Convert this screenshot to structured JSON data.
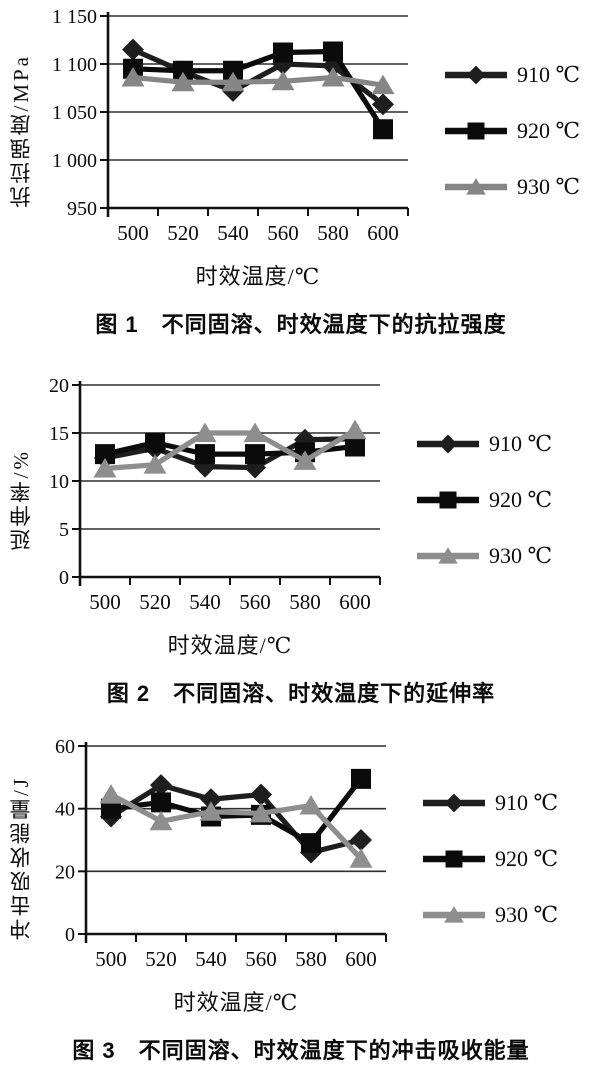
{
  "page": {
    "background": "#ffffff",
    "text_color": "#111111"
  },
  "chart_data": [
    {
      "type": "line",
      "caption": "图 1　不同固溶、时效温度下的抗拉强度",
      "ylabel": "抗拉强度/MPa",
      "xlabel": "时效温度/℃",
      "ylim": [
        950,
        1150
      ],
      "ystep": 50,
      "ytick_labels": [
        "950",
        "1 000",
        "1 050",
        "1 100",
        "1 150"
      ],
      "categories": [
        "500",
        "520",
        "540",
        "560",
        "580",
        "600"
      ],
      "grid": true,
      "legend_position": "right",
      "series": [
        {
          "name": "910 ℃",
          "marker": "diamond",
          "color": "#1e1e1e",
          "values": [
            1115,
            1092,
            1072,
            1100,
            1098,
            1058
          ]
        },
        {
          "name": "920 ℃",
          "marker": "square",
          "color": "#0b0b0b",
          "values": [
            1095,
            1093,
            1093,
            1112,
            1113,
            1032
          ]
        },
        {
          "name": "930 ℃",
          "marker": "triangle",
          "color": "#868686",
          "values": [
            1086,
            1081,
            1081,
            1082,
            1086,
            1078
          ]
        }
      ]
    },
    {
      "type": "line",
      "caption": "图 2　不同固溶、时效温度下的延伸率",
      "ylabel": "延伸率/%",
      "xlabel": "时效温度/℃",
      "ylim": [
        0,
        20
      ],
      "ystep": 5,
      "ytick_labels": [
        "0",
        "5",
        "10",
        "15",
        "20"
      ],
      "categories": [
        "500",
        "520",
        "540",
        "560",
        "580",
        "600"
      ],
      "grid": true,
      "legend_position": "right",
      "series": [
        {
          "name": "910 ℃",
          "marker": "diamond",
          "color": "#1e1e1e",
          "values": [
            12.4,
            13.4,
            11.5,
            11.4,
            14.3,
            14.4
          ]
        },
        {
          "name": "920 ℃",
          "marker": "square",
          "color": "#0b0b0b",
          "values": [
            12.8,
            14.0,
            12.8,
            12.8,
            13.0,
            13.6
          ]
        },
        {
          "name": "930 ℃",
          "marker": "triangle",
          "color": "#8e8e8e",
          "values": [
            11.3,
            11.7,
            15.0,
            15.0,
            12.1,
            15.3
          ]
        }
      ]
    },
    {
      "type": "line",
      "caption": "图 3　不同固溶、时效温度下的冲击吸收能量",
      "ylabel": "冲击吸收能量/J",
      "xlabel": "时效温度/℃",
      "ylim": [
        0,
        60
      ],
      "ystep": 20,
      "ytick_labels": [
        "0",
        "20",
        "40",
        "60"
      ],
      "categories": [
        "500",
        "520",
        "540",
        "560",
        "580",
        "600"
      ],
      "grid": true,
      "legend_position": "right",
      "series": [
        {
          "name": "910 ℃",
          "marker": "diamond",
          "color": "#1e1e1e",
          "values": [
            37.5,
            47.5,
            43,
            44.5,
            26,
            30
          ]
        },
        {
          "name": "920 ℃",
          "marker": "square",
          "color": "#0b0b0b",
          "values": [
            40,
            42,
            37.5,
            38,
            29,
            49.5
          ]
        },
        {
          "name": "930 ℃",
          "marker": "triangle",
          "color": "#8e8e8e",
          "values": [
            44.5,
            36,
            39,
            38.5,
            41,
            24
          ]
        }
      ]
    }
  ]
}
